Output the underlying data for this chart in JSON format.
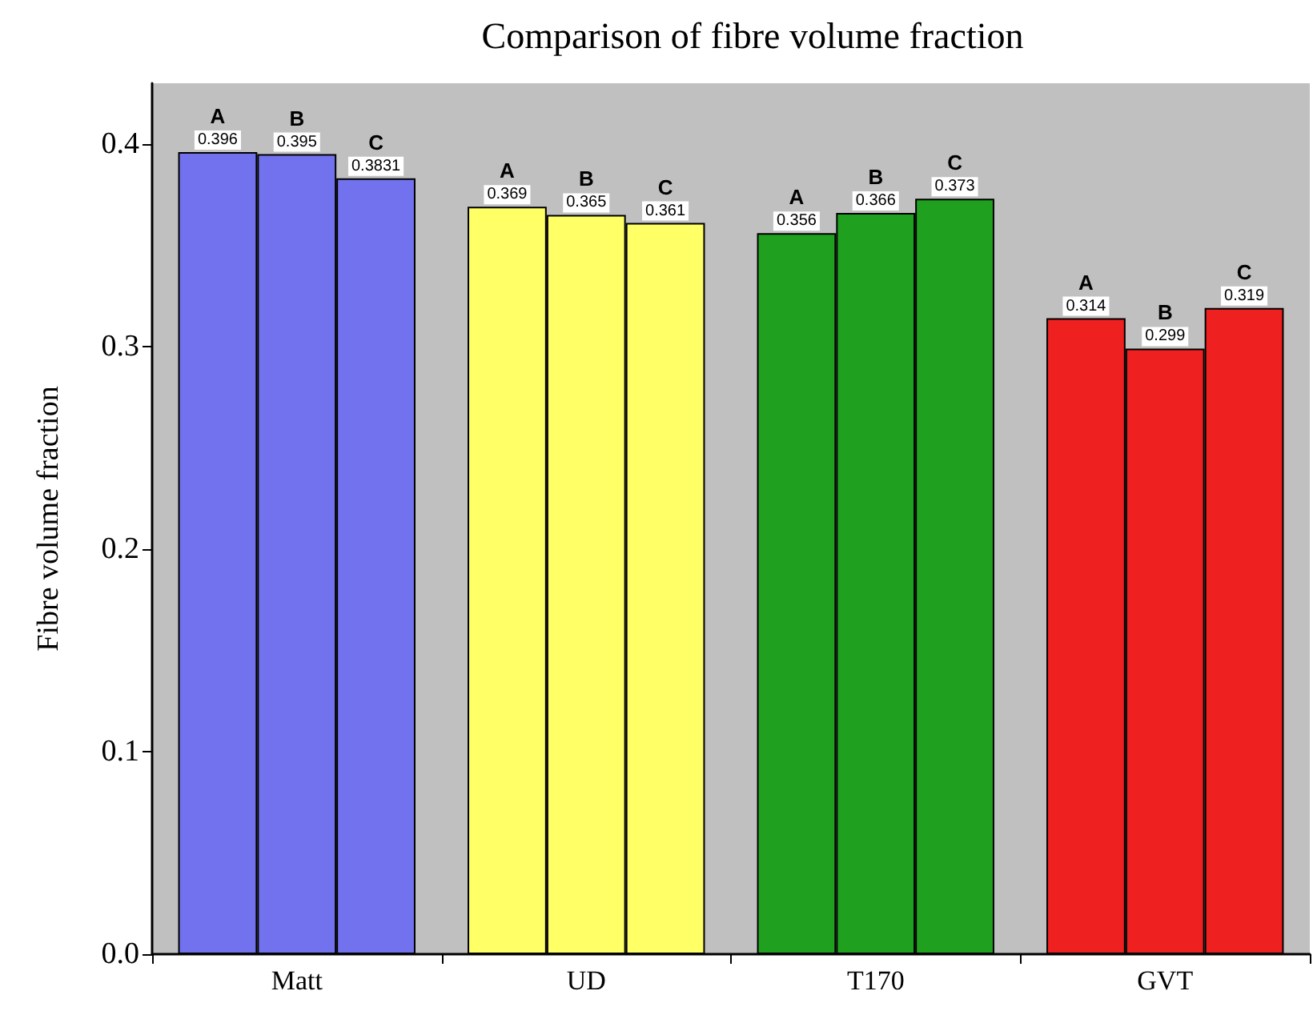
{
  "chart_data": {
    "type": "bar",
    "title": "Comparison of fibre volume fraction",
    "ylabel": "Fibre volume fraction",
    "categories": [
      "Matt",
      "UD",
      "T170",
      "GVT"
    ],
    "series": [
      {
        "name": "A",
        "colors": [
          "#7272ee",
          "#ffff66",
          "#1fa01f",
          "#ee2020"
        ],
        "values": [
          0.396,
          0.369,
          0.356,
          0.314
        ]
      },
      {
        "name": "B",
        "colors": [
          "#7272ee",
          "#ffff66",
          "#1fa01f",
          "#ee2020"
        ],
        "values": [
          0.395,
          0.365,
          0.366,
          0.299
        ]
      },
      {
        "name": "C",
        "colors": [
          "#7272ee",
          "#ffff66",
          "#1fa01f",
          "#ee2020"
        ],
        "values": [
          0.3831,
          0.361,
          0.373,
          0.319
        ]
      }
    ],
    "ylim": [
      0,
      0.43
    ],
    "yticks": [
      {
        "value": 0,
        "label": "0.0"
      },
      {
        "value": 0.1,
        "label": "0.1"
      },
      {
        "value": 0.2,
        "label": "0.2"
      },
      {
        "value": 0.3,
        "label": "0.3"
      },
      {
        "value": 0.4,
        "label": "0.4"
      }
    ],
    "data_labels": true,
    "grid": false,
    "legend": false
  }
}
